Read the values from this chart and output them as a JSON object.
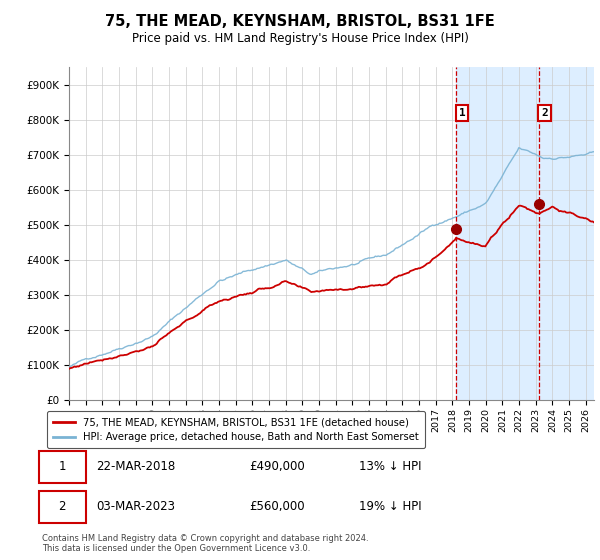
{
  "title": "75, THE MEAD, KEYNSHAM, BRISTOL, BS31 1FE",
  "subtitle": "Price paid vs. HM Land Registry's House Price Index (HPI)",
  "ylim": [
    0,
    950000
  ],
  "xlim_start": 1995.0,
  "xlim_end": 2026.5,
  "sale1_date": 2018.22,
  "sale1_price": 490000,
  "sale2_date": 2023.17,
  "sale2_price": 560000,
  "hpi_color": "#7ab3d4",
  "price_color": "#cc0000",
  "marker_color": "#990000",
  "shaded_color": "#ddeeff",
  "background_color": "#ffffff",
  "grid_color": "#cccccc",
  "legend_label_price": "75, THE MEAD, KEYNSHAM, BRISTOL, BS31 1FE (detached house)",
  "legend_label_hpi": "HPI: Average price, detached house, Bath and North East Somerset",
  "annotation1": "22-MAR-2018",
  "annotation1_price": "£490,000",
  "annotation1_pct": "13% ↓ HPI",
  "annotation2": "03-MAR-2023",
  "annotation2_price": "£560,000",
  "annotation2_pct": "19% ↓ HPI",
  "footnote": "Contains HM Land Registry data © Crown copyright and database right 2024.\nThis data is licensed under the Open Government Licence v3.0.",
  "yticks": [
    0,
    100000,
    200000,
    300000,
    400000,
    500000,
    600000,
    700000,
    800000,
    900000
  ],
  "ytick_labels": [
    "£0",
    "£100K",
    "£200K",
    "£300K",
    "£400K",
    "£500K",
    "£600K",
    "£700K",
    "£800K",
    "£900K"
  ]
}
